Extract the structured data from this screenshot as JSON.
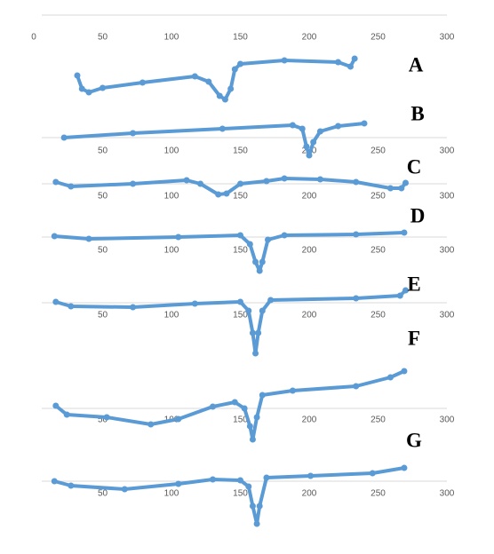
{
  "chart_data": [
    {
      "type": "scatter",
      "label": "A",
      "color": "#5b9bd5",
      "xlim": [
        -20,
        300
      ],
      "ylim": [
        -100,
        20
      ],
      "xticks": [
        0,
        50,
        100,
        150,
        200,
        250,
        300
      ],
      "x": [
        31.6,
        35,
        40,
        50,
        79,
        117,
        127,
        135,
        139,
        143,
        146,
        150,
        182,
        221,
        230,
        233
      ],
      "values": [
        -68,
        -83,
        -87,
        -82,
        -76,
        -69,
        -75,
        -91,
        -95,
        -83,
        -61,
        -55,
        -51,
        -53,
        -58,
        -49
      ]
    },
    {
      "type": "scatter",
      "label": "B",
      "color": "#5b9bd5",
      "xlim": [
        -20,
        300
      ],
      "ylim": [
        -25,
        20
      ],
      "xticks": [
        50,
        100,
        150,
        200,
        250,
        300
      ],
      "x": [
        22,
        72,
        137,
        188,
        195,
        198,
        200,
        203,
        208,
        221,
        240
      ],
      "values": [
        0,
        5,
        10,
        14,
        10,
        -10,
        -20,
        -5,
        7,
        13,
        16
      ]
    },
    {
      "type": "scatter",
      "label": "C",
      "color": "#5b9bd5",
      "xlim": [
        -20,
        300
      ],
      "ylim": [
        -15,
        10
      ],
      "xticks": [
        50,
        100,
        150,
        200,
        250,
        300
      ],
      "x": [
        16,
        27,
        72,
        111,
        121,
        134,
        140,
        150,
        169,
        182,
        208,
        234,
        259,
        267,
        270
      ],
      "values": [
        2,
        -3,
        0,
        4,
        0,
        -12,
        -11,
        0,
        3,
        6,
        5,
        2,
        -5,
        -5,
        1
      ]
    },
    {
      "type": "scatter",
      "label": "D",
      "color": "#5b9bd5",
      "xlim": [
        -20,
        300
      ],
      "ylim": [
        -42,
        8
      ],
      "xticks": [
        50,
        100,
        150,
        200,
        250,
        300
      ],
      "x": [
        15,
        40,
        105,
        150,
        157,
        161,
        164,
        166,
        170,
        182,
        234,
        269
      ],
      "values": [
        1,
        -2,
        0,
        2,
        -8,
        -28,
        -38,
        -28,
        -3,
        2,
        3,
        5
      ]
    },
    {
      "type": "scatter",
      "label": "E",
      "color": "#5b9bd5",
      "xlim": [
        -20,
        300
      ],
      "ylim": [
        -60,
        16
      ],
      "xticks": [
        50,
        100,
        150,
        200,
        250,
        300
      ],
      "x": [
        16,
        27,
        72,
        117,
        150,
        156,
        159,
        161,
        163,
        166,
        172,
        234,
        266,
        270
      ],
      "values": [
        1,
        -4,
        -5,
        -1,
        1,
        -9,
        -34,
        -57,
        -34,
        -9,
        3,
        5,
        8,
        14
      ]
    },
    {
      "type": "scatter",
      "label": "F",
      "color": "#5b9bd5",
      "xlim": [
        -20,
        300
      ],
      "ylim": [
        -38,
        45
      ],
      "xticks": [
        50,
        100,
        150,
        200,
        250,
        300
      ],
      "x": [
        16,
        24,
        53,
        85,
        105,
        130,
        146,
        153,
        157,
        159,
        162,
        166,
        188,
        234,
        259,
        269
      ],
      "values": [
        3,
        -7,
        -10,
        -18,
        -12,
        2,
        7,
        0,
        -20,
        -35,
        -10,
        15,
        20,
        25,
        35,
        42
      ]
    },
    {
      "type": "scatter",
      "label": "G",
      "color": "#5b9bd5",
      "xlim": [
        -20,
        300
      ],
      "ylim": [
        -52,
        18
      ],
      "xticks": [
        50,
        100,
        150,
        200,
        250,
        300
      ],
      "x": [
        15,
        27,
        66,
        105,
        130,
        150,
        156,
        159,
        162,
        164,
        169,
        201,
        246,
        269
      ],
      "values": [
        0,
        -5,
        -9,
        -3,
        2,
        1,
        -6,
        -28,
        -48,
        -28,
        4,
        6,
        9,
        15
      ]
    }
  ]
}
